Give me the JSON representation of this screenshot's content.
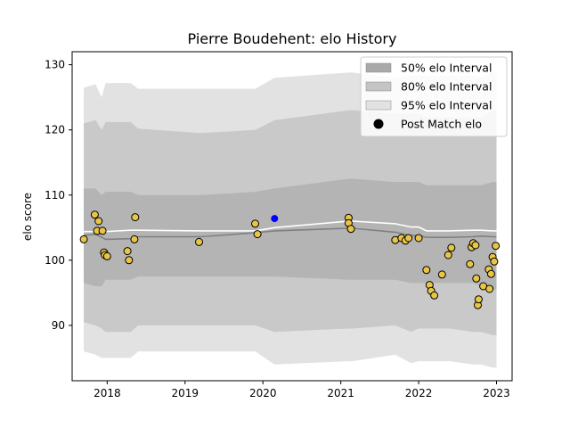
{
  "chart_data": {
    "type": "line",
    "title": "Pierre Boudehent: elo History",
    "xlabel": "",
    "ylabel": "elo score",
    "xlim": [
      2017.55,
      2023.2
    ],
    "ylim": [
      81.5,
      132
    ],
    "xticks": [
      2018,
      2019,
      2020,
      2021,
      2022,
      2023
    ],
    "xtick_labels": [
      "2018",
      "2019",
      "2020",
      "2021",
      "2022",
      "2023"
    ],
    "yticks": [
      90,
      100,
      110,
      120,
      130
    ],
    "ytick_labels": [
      "90",
      "100",
      "110",
      "120",
      "130"
    ],
    "grid": false,
    "legend_position": "top-right",
    "legend": [
      {
        "label": "50% elo Interval",
        "kind": "band",
        "color": "#a9a9a9"
      },
      {
        "label": "80% elo Interval",
        "kind": "band",
        "color": "#c4c4c4"
      },
      {
        "label": "95% elo Interval",
        "kind": "band",
        "color": "#e2e2e2"
      },
      {
        "label": "Post Match elo",
        "kind": "marker",
        "color": "#000000"
      }
    ],
    "x": [
      2017.7,
      2017.85,
      2017.93,
      2017.98,
      2018.3,
      2018.4,
      2019.2,
      2019.9,
      2020.15,
      2021.1,
      2021.15,
      2021.7,
      2021.9,
      2022.0,
      2022.1,
      2022.4,
      2022.7,
      2022.8,
      2022.95,
      2023.0
    ],
    "band95_upper": [
      126.5,
      127.0,
      125.0,
      127.2,
      127.2,
      126.3,
      126.3,
      126.3,
      128.0,
      128.8,
      128.8,
      128.0,
      128.3,
      128.3,
      128.3,
      128.3,
      128.3,
      128.0,
      129.0,
      129.0
    ],
    "band95_lower": [
      86.0,
      85.5,
      85.0,
      85.0,
      85.0,
      86.0,
      86.0,
      86.0,
      84.0,
      84.5,
      84.5,
      85.5,
      84.2,
      84.5,
      84.5,
      84.5,
      84.0,
      84.0,
      83.5,
      83.5
    ],
    "band80_upper": [
      121.0,
      121.5,
      120.0,
      121.2,
      121.2,
      120.2,
      119.5,
      120.0,
      121.5,
      123.0,
      123.0,
      122.5,
      122.5,
      122.5,
      122.0,
      122.0,
      122.0,
      122.0,
      123.0,
      123.0
    ],
    "band80_lower": [
      90.5,
      90.0,
      89.5,
      89.0,
      89.0,
      90.0,
      90.0,
      90.0,
      89.0,
      89.5,
      89.5,
      90.0,
      89.0,
      89.5,
      89.5,
      89.5,
      89.0,
      89.0,
      88.5,
      88.5
    ],
    "band50_upper": [
      111.0,
      111.0,
      110.0,
      110.5,
      110.5,
      110.0,
      110.0,
      110.5,
      111.0,
      112.5,
      112.5,
      112.0,
      112.0,
      112.0,
      111.5,
      111.5,
      111.5,
      111.5,
      112.0,
      112.0
    ],
    "band50_lower": [
      96.5,
      96.0,
      96.0,
      97.0,
      97.0,
      97.5,
      97.5,
      97.5,
      97.5,
      97.0,
      97.0,
      97.0,
      96.5,
      96.5,
      96.5,
      96.5,
      96.5,
      96.0,
      95.5,
      95.5
    ],
    "mean_line": [
      103.8,
      104.0,
      103.5,
      103.2,
      103.3,
      103.6,
      103.6,
      104.2,
      104.5,
      104.9,
      104.9,
      104.3,
      103.8,
      103.8,
      103.5,
      103.5,
      103.6,
      103.7,
      103.6,
      103.6
    ],
    "median_line": [
      104.4,
      104.4,
      104.4,
      104.4,
      104.6,
      104.6,
      104.5,
      104.5,
      105.0,
      106.0,
      106.0,
      105.6,
      105.1,
      105.1,
      104.5,
      104.5,
      104.6,
      104.6,
      104.5,
      104.5
    ],
    "post_match": [
      {
        "x": 2017.7,
        "y": 103.2
      },
      {
        "x": 2017.84,
        "y": 107.0
      },
      {
        "x": 2017.89,
        "y": 106.0
      },
      {
        "x": 2017.87,
        "y": 104.5
      },
      {
        "x": 2017.94,
        "y": 104.5
      },
      {
        "x": 2017.96,
        "y": 101.2
      },
      {
        "x": 2017.97,
        "y": 100.8
      },
      {
        "x": 2018.0,
        "y": 100.6
      },
      {
        "x": 2018.26,
        "y": 101.4
      },
      {
        "x": 2018.28,
        "y": 100.0
      },
      {
        "x": 2018.35,
        "y": 103.2
      },
      {
        "x": 2018.36,
        "y": 106.6
      },
      {
        "x": 2019.18,
        "y": 102.8
      },
      {
        "x": 2019.9,
        "y": 105.6
      },
      {
        "x": 2019.93,
        "y": 104.0
      },
      {
        "x": 2021.1,
        "y": 106.5
      },
      {
        "x": 2021.1,
        "y": 105.7
      },
      {
        "x": 2021.13,
        "y": 104.8
      },
      {
        "x": 2021.7,
        "y": 103.1
      },
      {
        "x": 2021.78,
        "y": 103.4
      },
      {
        "x": 2021.83,
        "y": 103.0
      },
      {
        "x": 2021.87,
        "y": 103.4
      },
      {
        "x": 2022.0,
        "y": 103.4
      },
      {
        "x": 2022.1,
        "y": 98.5
      },
      {
        "x": 2022.14,
        "y": 96.2
      },
      {
        "x": 2022.16,
        "y": 95.3
      },
      {
        "x": 2022.2,
        "y": 94.6
      },
      {
        "x": 2022.3,
        "y": 97.8
      },
      {
        "x": 2022.38,
        "y": 100.8
      },
      {
        "x": 2022.42,
        "y": 101.9
      },
      {
        "x": 2022.66,
        "y": 99.4
      },
      {
        "x": 2022.68,
        "y": 102.0
      },
      {
        "x": 2022.7,
        "y": 102.6
      },
      {
        "x": 2022.73,
        "y": 102.3
      },
      {
        "x": 2022.74,
        "y": 97.2
      },
      {
        "x": 2022.76,
        "y": 93.1
      },
      {
        "x": 2022.77,
        "y": 94.0
      },
      {
        "x": 2022.83,
        "y": 96.0
      },
      {
        "x": 2022.9,
        "y": 98.6
      },
      {
        "x": 2022.91,
        "y": 95.6
      },
      {
        "x": 2022.93,
        "y": 97.9
      },
      {
        "x": 2022.95,
        "y": 100.5
      },
      {
        "x": 2022.97,
        "y": 99.8
      },
      {
        "x": 2022.99,
        "y": 102.2
      }
    ],
    "highlight_point": {
      "x": 2020.15,
      "y": 106.4,
      "color": "#0000ff"
    },
    "colors": {
      "band95": "#e2e2e2",
      "band80": "#c9c9c9",
      "band50": "#b4b4b4",
      "mean_line": "#808080",
      "median_line": "#ffffff",
      "marker_fill": "#e8c547",
      "marker_edge": "#000000"
    }
  }
}
